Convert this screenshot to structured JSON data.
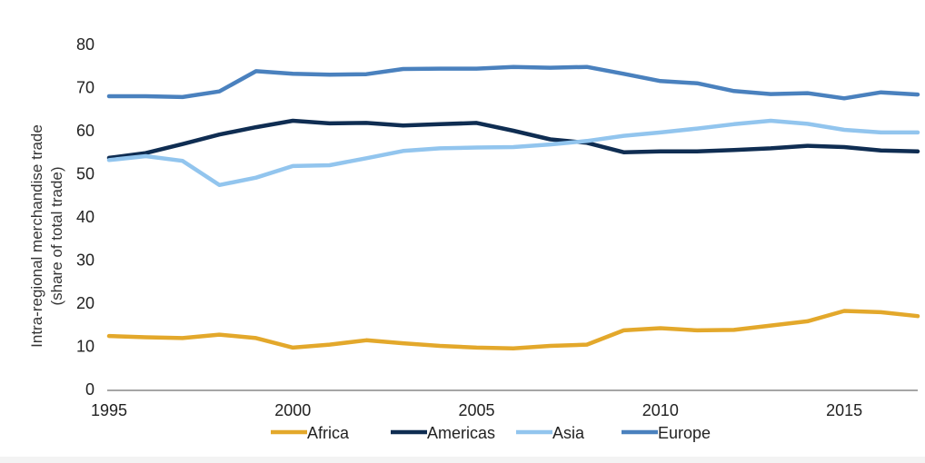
{
  "chart_data": {
    "type": "line",
    "title": "",
    "ylabel_line1": "Intra-regional merchandise trade",
    "ylabel_line2": "(share of total trade)",
    "xlabel": "",
    "xlim": [
      1995,
      2017
    ],
    "ylim": [
      0,
      80
    ],
    "x_ticks": [
      "1995",
      "2000",
      "2005",
      "2010",
      "2015"
    ],
    "y_ticks": [
      "0",
      "10",
      "20",
      "30",
      "40",
      "50",
      "60",
      "70",
      "80"
    ],
    "grid": false,
    "legend_position": "bottom",
    "x": [
      1995,
      1996,
      1997,
      1998,
      1999,
      2000,
      2001,
      2002,
      2003,
      2004,
      2005,
      2006,
      2007,
      2008,
      2009,
      2010,
      2011,
      2012,
      2013,
      2014,
      2015,
      2016,
      2017
    ],
    "series": [
      {
        "name": "Africa",
        "color": "#E3A82B",
        "values": [
          12.2,
          11.9,
          11.7,
          12.5,
          11.7,
          9.5,
          10.2,
          11.2,
          10.5,
          9.9,
          9.5,
          9.3,
          9.9,
          10.2,
          13.5,
          14.0,
          13.5,
          13.6,
          14.6,
          15.6,
          18.0,
          17.7,
          16.8
        ]
      },
      {
        "name": "Americas",
        "color": "#0F2D52",
        "values": [
          53.5,
          54.6,
          56.7,
          58.9,
          60.6,
          62.1,
          61.5,
          61.6,
          61.0,
          61.3,
          61.6,
          59.8,
          57.8,
          57.0,
          54.8,
          55.0,
          55.0,
          55.3,
          55.7,
          56.3,
          56.0,
          55.2,
          55.0
        ]
      },
      {
        "name": "Asia",
        "color": "#92C5EE",
        "values": [
          53.0,
          53.9,
          52.8,
          47.2,
          48.9,
          51.6,
          51.8,
          53.4,
          55.1,
          55.7,
          55.9,
          56.0,
          56.6,
          57.4,
          58.6,
          59.4,
          60.3,
          61.3,
          62.1,
          61.4,
          60.0,
          59.4,
          59.4
        ]
      },
      {
        "name": "Europe",
        "color": "#4A81BE",
        "values": [
          67.8,
          67.8,
          67.6,
          68.9,
          73.6,
          73.0,
          72.8,
          72.9,
          74.1,
          74.2,
          74.2,
          74.6,
          74.4,
          74.6,
          73.0,
          71.3,
          70.8,
          69.0,
          68.3,
          68.5,
          67.3,
          68.7,
          68.2
        ]
      }
    ]
  }
}
